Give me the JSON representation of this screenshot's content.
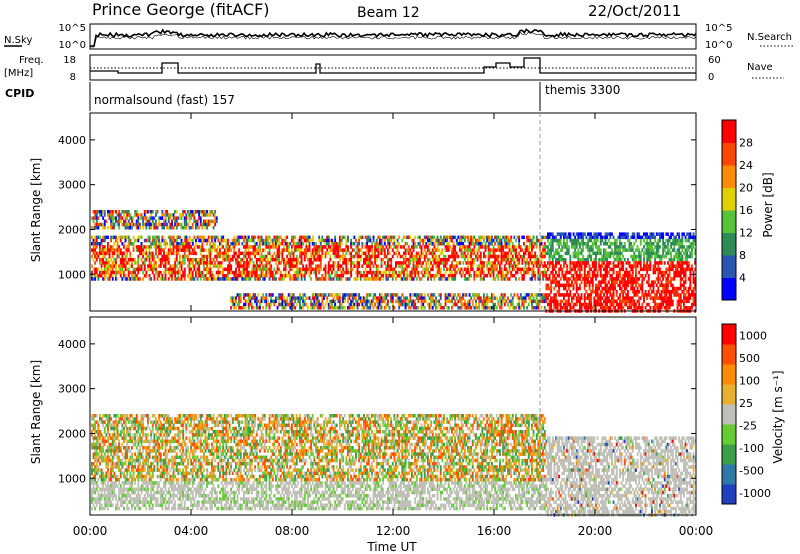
{
  "header": {
    "station": "Prince George (fitACF)",
    "beam": "Beam 12",
    "date": "22/Oct/2011"
  },
  "noise_panel": {
    "left_label": "N.Sky",
    "right_label": "N.Search",
    "left_ticks": [
      "10^5",
      "10^0"
    ],
    "right_ticks": [
      "10^5",
      "10^0"
    ]
  },
  "freq_panel": {
    "left_label_1": "Freq.",
    "left_label_2": "[MHz]",
    "left_ticks": [
      "18",
      "8"
    ],
    "right_label": "Nave",
    "right_ticks": [
      "60",
      "0"
    ]
  },
  "cpid": {
    "label": "CPID",
    "segments": [
      {
        "name": "normalsound (fast) 157",
        "start_hour": 0
      },
      {
        "name": "themis 3300",
        "start_hour": 18
      }
    ]
  },
  "chart_data": {
    "type": "heatmap",
    "x_label": "Time UT",
    "x_ticks": [
      "00:00",
      "04:00",
      "08:00",
      "12:00",
      "16:00",
      "20:00",
      "00:00"
    ],
    "x_range_hours": [
      0,
      24
    ],
    "panels": [
      {
        "name": "power",
        "ylabel": "Slant Range [km]",
        "ylim": [
          180,
          4600
        ],
        "y_ticks": [
          "4000",
          "3000",
          "2000",
          "1000"
        ],
        "colorbar_label": "Power [dB]",
        "colorbar_ticks": [
          "28",
          "24",
          "20",
          "16",
          "12",
          "8",
          "4"
        ],
        "colors": [
          "#0000ff",
          "#2a56b0",
          "#2e8b57",
          "#58c23a",
          "#e0d000",
          "#ff8c00",
          "#ff4500",
          "#ff0000"
        ]
      },
      {
        "name": "velocity",
        "ylabel": "Slant Range [km]",
        "ylim": [
          180,
          4600
        ],
        "y_ticks": [
          "4000",
          "3000",
          "2000",
          "1000"
        ],
        "colorbar_label": "Velocity [m s⁻¹]",
        "colorbar_ticks": [
          "1000",
          "500",
          "100",
          "25",
          "-25",
          "-100",
          "-500",
          "-1000"
        ],
        "colors": [
          "#1f3fbf",
          "#2f78a8",
          "#3d9e4a",
          "#66cc33",
          "#c0c0b8",
          "#e8b030",
          "#ff8c00",
          "#ff5000",
          "#ff0000"
        ]
      }
    ]
  }
}
